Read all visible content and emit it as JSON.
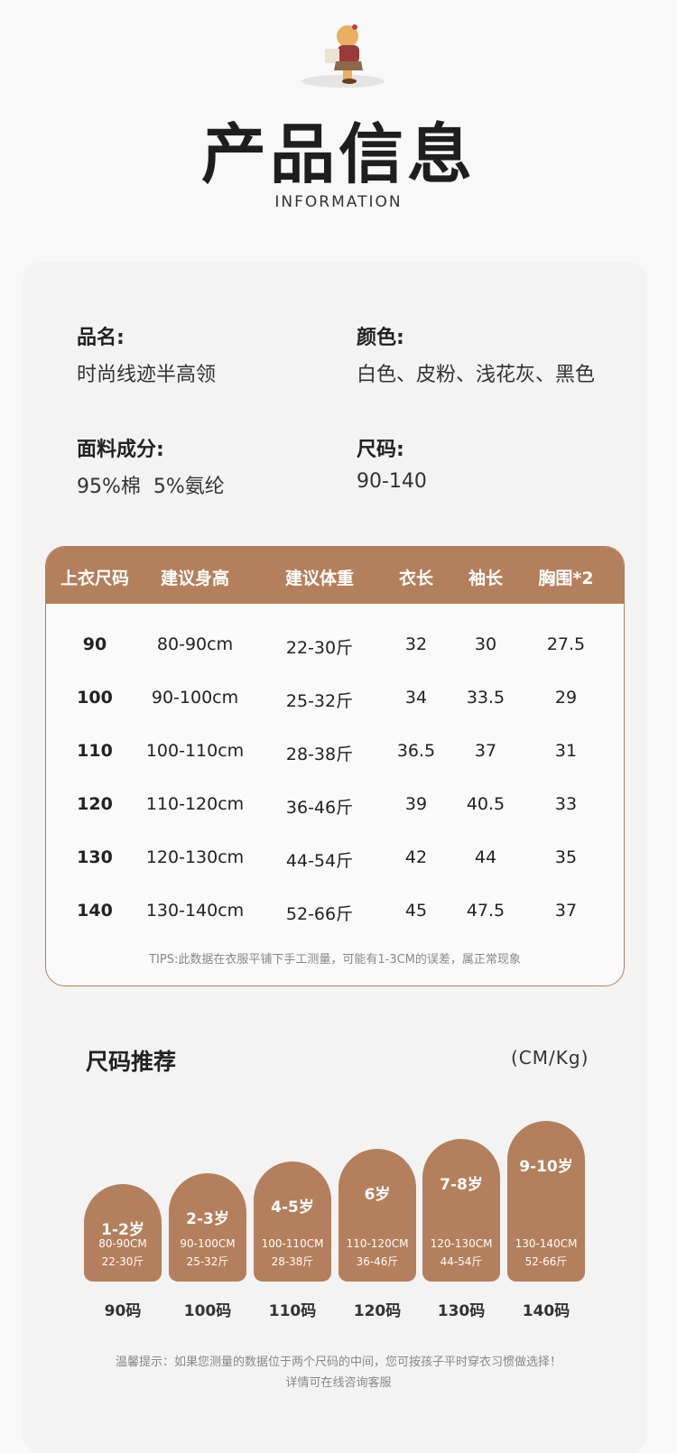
{
  "header": {
    "title": "产品信息",
    "subtitle": "INFORMATION",
    "mascot_icon": "bear-carrying-books"
  },
  "info": {
    "name_label": "品名:",
    "name_value": "时尚线迹半高领",
    "color_label": "颜色:",
    "color_value": "白色、皮粉、浅花灰、黑色",
    "fabric_label": "面料成分:",
    "fabric_value": "95%棉  5%氨纶",
    "size_label": "尺码:",
    "size_value": "90-140"
  },
  "table": {
    "columns": [
      "上衣尺码",
      "建议身高",
      "建议体重",
      "衣长",
      "袖长",
      "胸围*2"
    ],
    "rows": [
      [
        "90",
        "80-90cm",
        "22-30斤",
        "32",
        "30",
        "27.5"
      ],
      [
        "100",
        "90-100cm",
        "25-32斤",
        "34",
        "33.5",
        "29"
      ],
      [
        "110",
        "100-110cm",
        "28-38斤",
        "36.5",
        "37",
        "31"
      ],
      [
        "120",
        "110-120cm",
        "36-46斤",
        "39",
        "40.5",
        "33"
      ],
      [
        "130",
        "120-130cm",
        "44-54斤",
        "42",
        "44",
        "35"
      ],
      [
        "140",
        "130-140cm",
        "52-66斤",
        "45",
        "47.5",
        "37"
      ]
    ],
    "tips": "TIPS:此数据在衣服平铺下手工测量，可能有1-3CM的误差，属正常现象"
  },
  "recommend": {
    "title": "尺码推荐",
    "unit": "(CM/Kg)",
    "items": [
      {
        "age": "1-2岁",
        "height": "80-90CM",
        "weight": "22-30斤",
        "size": "90码"
      },
      {
        "age": "2-3岁",
        "height": "90-100CM",
        "weight": "25-32斤",
        "size": "100码"
      },
      {
        "age": "4-5岁",
        "height": "100-110CM",
        "weight": "28-38斤",
        "size": "110码"
      },
      {
        "age": "6岁",
        "height": "110-120CM",
        "weight": "36-46斤",
        "size": "120码"
      },
      {
        "age": "7-8岁",
        "height": "120-130CM",
        "weight": "44-54斤",
        "size": "130码"
      },
      {
        "age": "9-10岁",
        "height": "130-140CM",
        "weight": "52-66斤",
        "size": "140码"
      }
    ]
  },
  "footer": {
    "note": "温馨提示：如果您测量的数据位于两个尺码的中间，您可按孩子平时穿衣习惯做选择！",
    "note2": "详情可在线咨询客服"
  },
  "colors": {
    "accent": "#b47f5c",
    "background": "#f8f8f8",
    "card": "#f3f3f3"
  }
}
